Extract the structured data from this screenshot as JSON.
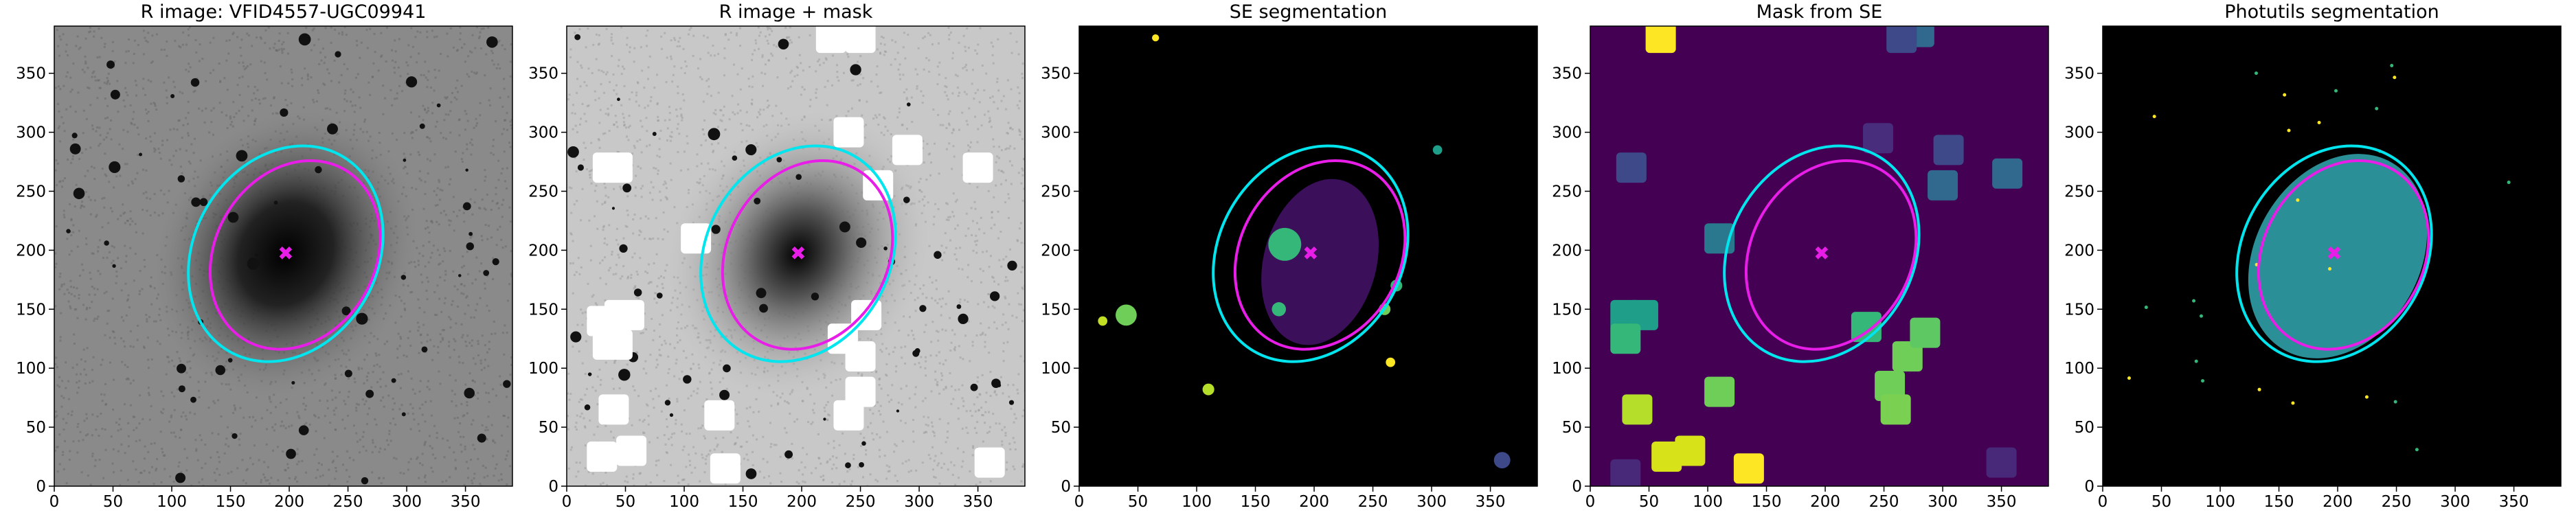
{
  "chart_data": [
    {
      "type": "image",
      "title": "R image: VFID4557-UGC09941",
      "xlim": [
        0,
        390
      ],
      "ylim": [
        0,
        390
      ],
      "xticks": [
        0,
        50,
        100,
        150,
        200,
        250,
        300,
        350
      ],
      "yticks": [
        0,
        50,
        100,
        150,
        200,
        250,
        300,
        350
      ]
    },
    {
      "type": "image",
      "title": "R image + mask",
      "xlim": [
        0,
        390
      ],
      "ylim": [
        0,
        390
      ],
      "xticks": [
        0,
        50,
        100,
        150,
        200,
        250,
        300,
        350
      ],
      "yticks": [
        0,
        50,
        100,
        150,
        200,
        250,
        300,
        350
      ]
    },
    {
      "type": "image",
      "title": "SE segmentation",
      "xlim": [
        0,
        390
      ],
      "ylim": [
        0,
        390
      ],
      "xticks": [
        0,
        50,
        100,
        150,
        200,
        250,
        300,
        350
      ],
      "yticks": [
        0,
        50,
        100,
        150,
        200,
        250,
        300,
        350
      ]
    },
    {
      "type": "image",
      "title": "Mask from SE",
      "xlim": [
        0,
        390
      ],
      "ylim": [
        0,
        390
      ],
      "xticks": [
        0,
        50,
        100,
        150,
        200,
        250,
        300,
        350
      ],
      "yticks": [
        0,
        50,
        100,
        150,
        200,
        250,
        300,
        350
      ]
    },
    {
      "type": "image",
      "title": "Photutils segmentation",
      "xlim": [
        0,
        390
      ],
      "ylim": [
        0,
        390
      ],
      "xticks": [
        0,
        50,
        100,
        150,
        200,
        250,
        300,
        350
      ],
      "yticks": [
        0,
        50,
        100,
        150,
        200,
        250,
        300,
        350
      ]
    }
  ]
}
